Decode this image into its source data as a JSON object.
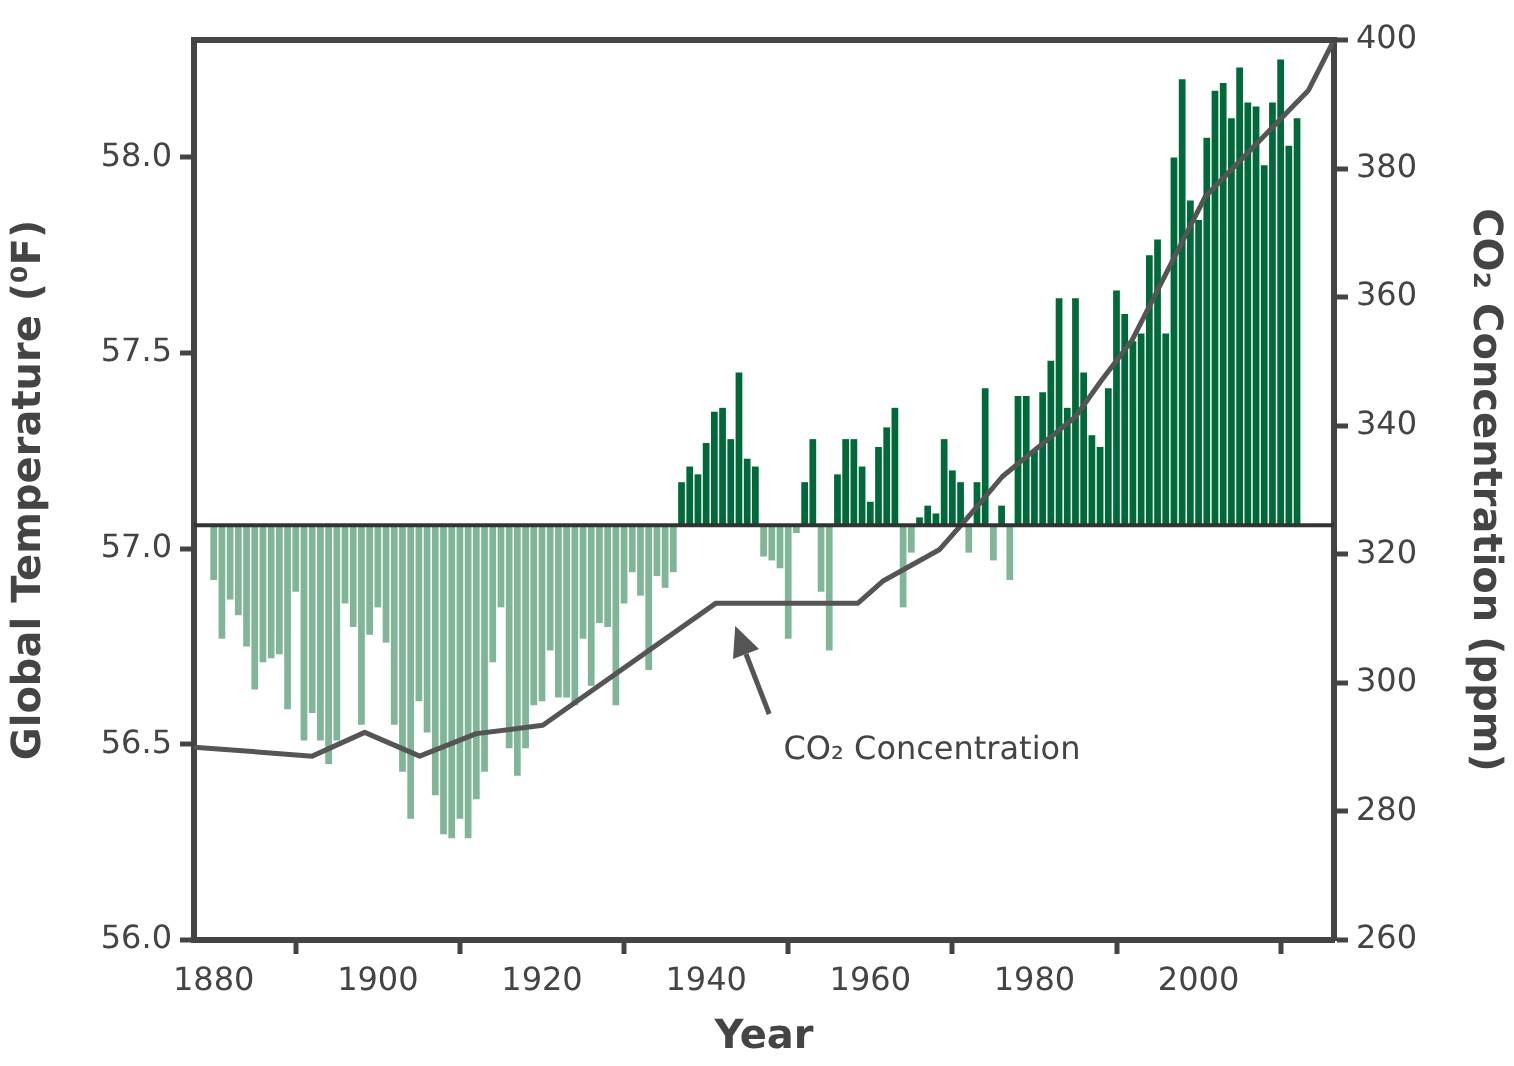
{
  "chart_data": {
    "type": "bar",
    "xlabel": "Year",
    "ylabel": "Global Temperature (⁰F)",
    "y2label": "CO₂ Concentration (ppm)",
    "xlim": [
      1877.6,
      2016.5
    ],
    "xticks": [
      1880,
      1900,
      1920,
      1940,
      1960,
      1980,
      2000
    ],
    "ylim": [
      56,
      58.3
    ],
    "yticks": [
      {
        "value": 56,
        "label": "56.0"
      },
      {
        "value": 56.5,
        "label": "56.5"
      },
      {
        "value": 57,
        "label": "57.0"
      },
      {
        "value": 57.5,
        "label": "57.5"
      },
      {
        "value": 58,
        "label": "58.0"
      }
    ],
    "y2lim": [
      260,
      400
    ],
    "y2ticks": [
      260,
      280,
      300,
      320,
      340,
      360,
      380,
      400
    ],
    "series": [
      {
        "x": [
          1880,
          1881,
          1882,
          1883,
          1884,
          1885,
          1886,
          1887,
          1888,
          1889,
          1890,
          1891,
          1892,
          1893,
          1894,
          1895,
          1896,
          1897,
          1898,
          1899,
          1900,
          1901,
          1902,
          1903,
          1904,
          1905,
          1906,
          1907,
          1908,
          1909,
          1910,
          1911,
          1912,
          1913,
          1914,
          1915,
          1916,
          1917,
          1918,
          1919,
          1920,
          1921,
          1922,
          1923,
          1924,
          1925,
          1926,
          1927,
          1928,
          1929,
          1930,
          1931,
          1932,
          1933,
          1934,
          1935,
          1936,
          1937,
          1938,
          1939,
          1940,
          1941,
          1942,
          1943,
          1944,
          1945,
          1946,
          1947,
          1948,
          1949,
          1950,
          1951,
          1952,
          1953,
          1954,
          1955,
          1956,
          1957,
          1958,
          1959,
          1960,
          1961,
          1962,
          1963,
          1964,
          1965,
          1966,
          1967,
          1968,
          1969,
          1970,
          1971,
          1972,
          1973,
          1974,
          1975,
          1976,
          1977,
          1978,
          1979,
          1980,
          1981,
          1982,
          1983,
          1984,
          1985,
          1986,
          1987,
          1988,
          1989,
          1990,
          1991,
          1992,
          1993,
          1994,
          1995,
          1996,
          1997,
          1998,
          1999,
          2000,
          2001,
          2002,
          2003,
          2004,
          2005,
          2006,
          2007,
          2008,
          2009,
          2010,
          2011,
          2012
        ],
        "values": [
          -0.14,
          -0.29,
          -0.19,
          -0.23,
          -0.31,
          -0.42,
          -0.35,
          -0.34,
          -0.33,
          -0.47,
          -0.17,
          -0.55,
          -0.48,
          -0.55,
          -0.61,
          -0.55,
          -0.2,
          -0.26,
          -0.51,
          -0.28,
          -0.21,
          -0.3,
          -0.51,
          -0.63,
          -0.75,
          -0.45,
          -0.53,
          -0.69,
          -0.79,
          -0.8,
          -0.75,
          -0.8,
          -0.7,
          -0.63,
          -0.35,
          -0.21,
          -0.57,
          -0.64,
          -0.57,
          -0.46,
          -0.45,
          -0.32,
          -0.44,
          -0.44,
          -0.46,
          -0.29,
          -0.41,
          -0.25,
          -0.26,
          -0.46,
          -0.2,
          -0.12,
          -0.18,
          -0.37,
          -0.13,
          -0.16,
          -0.12,
          0.11,
          0.15,
          0.13,
          0.21,
          0.29,
          0.3,
          0.22,
          0.39,
          0.17,
          0.15,
          -0.08,
          -0.09,
          -0.11,
          -0.29,
          -0.02,
          0.11,
          0.22,
          -0.17,
          -0.32,
          0.13,
          0.22,
          0.22,
          0.15,
          0.06,
          0.2,
          0.25,
          0.3,
          -0.21,
          -0.07,
          0.02,
          0.05,
          0.03,
          0.22,
          0.14,
          0.11,
          -0.07,
          0.11,
          0.35,
          -0.09,
          0.05,
          -0.14,
          0.33,
          0.33,
          0.19,
          0.34,
          0.42,
          0.58,
          0.3,
          0.58,
          0.39,
          0.23,
          0.2,
          0.35,
          0.6,
          0.54,
          0.47,
          0.49,
          0.69,
          0.73,
          0.49,
          0.94,
          1.14,
          0.83,
          0.78,
          0.99,
          1.11,
          1.13,
          1.04,
          1.17,
          1.08,
          1.07,
          0.92,
          1.08,
          1.19,
          0.97,
          1.04
        ],
        "base": [
          57.06,
          57.06,
          57.06,
          57.06,
          57.06,
          57.06,
          57.06,
          57.06,
          57.06,
          57.06,
          57.06,
          57.06,
          57.06,
          57.06,
          57.06,
          57.06,
          57.06,
          57.06,
          57.06,
          57.06,
          57.06,
          57.06,
          57.06,
          57.06,
          57.06,
          57.06,
          57.06,
          57.06,
          57.06,
          57.06,
          57.06,
          57.06,
          57.06,
          57.06,
          57.06,
          57.06,
          57.06,
          57.06,
          57.06,
          57.06,
          57.06,
          57.06,
          57.06,
          57.06,
          57.06,
          57.06,
          57.06,
          57.06,
          57.06,
          57.06,
          57.06,
          57.06,
          57.06,
          57.06,
          57.06,
          57.06,
          57.06,
          57.06,
          57.06,
          57.06,
          57.06,
          57.06,
          57.06,
          57.06,
          57.06,
          57.06,
          57.06,
          57.06,
          57.06,
          57.06,
          57.06,
          57.06,
          57.06,
          57.06,
          57.06,
          57.06,
          57.06,
          57.06,
          57.06,
          57.06,
          57.06,
          57.06,
          57.06,
          57.06,
          57.06,
          57.06,
          57.06,
          57.06,
          57.06,
          57.06,
          57.06,
          57.06,
          57.06,
          57.06,
          57.06,
          57.06,
          57.06,
          57.06,
          57.06,
          57.06,
          57.06,
          57.06,
          57.06,
          57.06,
          57.06,
          57.06,
          57.06,
          57.06,
          57.06,
          57.06,
          57.06,
          57.06,
          57.06,
          57.06,
          57.06,
          57.06,
          57.06,
          57.06,
          57.06,
          57.06,
          57.06,
          57.06,
          57.06,
          57.06,
          57.06,
          57.06,
          57.06,
          57.06,
          57.06,
          57.06,
          57.06,
          57.06,
          57.06
        ],
        "colors": [
          "#80b597",
          "#80b597",
          "#80b597",
          "#80b597",
          "#80b597",
          "#80b597",
          "#80b597",
          "#80b597",
          "#80b597",
          "#80b597",
          "#80b597",
          "#80b597",
          "#80b597",
          "#80b597",
          "#80b597",
          "#80b597",
          "#80b597",
          "#80b597",
          "#80b597",
          "#80b597",
          "#80b597",
          "#80b597",
          "#80b597",
          "#80b597",
          "#80b597",
          "#80b597",
          "#80b597",
          "#80b597",
          "#80b597",
          "#80b597",
          "#80b597",
          "#80b597",
          "#80b597",
          "#80b597",
          "#80b597",
          "#80b597",
          "#80b597",
          "#80b597",
          "#80b597",
          "#80b597",
          "#80b597",
          "#80b597",
          "#80b597",
          "#80b597",
          "#80b597",
          "#80b597",
          "#80b597",
          "#80b597",
          "#80b597",
          "#80b597",
          "#80b597",
          "#80b597",
          "#80b597",
          "#80b597",
          "#80b597",
          "#80b597",
          "#80b597",
          "#00693a",
          "#00693a",
          "#00693a",
          "#00693a",
          "#00693a",
          "#00693a",
          "#00693a",
          "#00693a",
          "#00693a",
          "#00693a",
          "#80b597",
          "#80b597",
          "#80b597",
          "#80b597",
          "#80b597",
          "#00693a",
          "#00693a",
          "#80b597",
          "#80b597",
          "#00693a",
          "#00693a",
          "#00693a",
          "#00693a",
          "#00693a",
          "#00693a",
          "#00693a",
          "#00693a",
          "#80b597",
          "#80b597",
          "#00693a",
          "#00693a",
          "#00693a",
          "#00693a",
          "#00693a",
          "#00693a",
          "#80b597",
          "#00693a",
          "#00693a",
          "#80b597",
          "#00693a",
          "#80b597",
          "#00693a",
          "#00693a",
          "#00693a",
          "#00693a",
          "#00693a",
          "#00693a",
          "#00693a",
          "#00693a",
          "#00693a",
          "#00693a",
          "#00693a",
          "#00693a",
          "#00693a",
          "#00693a",
          "#00693a",
          "#00693a",
          "#00693a",
          "#00693a",
          "#00693a",
          "#00693a",
          "#00693a",
          "#00693a",
          "#00693a",
          "#00693a",
          "#00693a",
          "#00693a",
          "#00693a",
          "#00693a",
          "#00693a",
          "#00693a",
          "#00693a",
          "#00693a",
          "#00693a",
          "#00693a",
          "#00693a"
        ]
      },
      {
        "type": "line",
        "axis": "y2",
        "color": "#555555",
        "marker": "none",
        "x": [
          1877.6,
          1892,
          1898.4,
          1905.1,
          1912,
          1920.1,
          1941.2,
          1958.5,
          1961.5,
          1968.4,
          1971.6,
          1976.1,
          1985,
          1988.2,
          1991.9,
          2000.8,
          2013.4,
          2016.5
        ],
        "values": [
          290,
          288.6,
          292.3,
          288.6,
          292.1,
          293.4,
          312.4,
          312.4,
          315.8,
          320.7,
          325.3,
          332.1,
          341.4,
          347.1,
          353.3,
          375.6,
          392.2,
          400
        ]
      }
    ],
    "ref_lines": [
      {
        "axis": "y",
        "value": 57.06,
        "color": "#333333"
      }
    ],
    "annotations": [
      "CO₂ Concentration"
    ]
  }
}
